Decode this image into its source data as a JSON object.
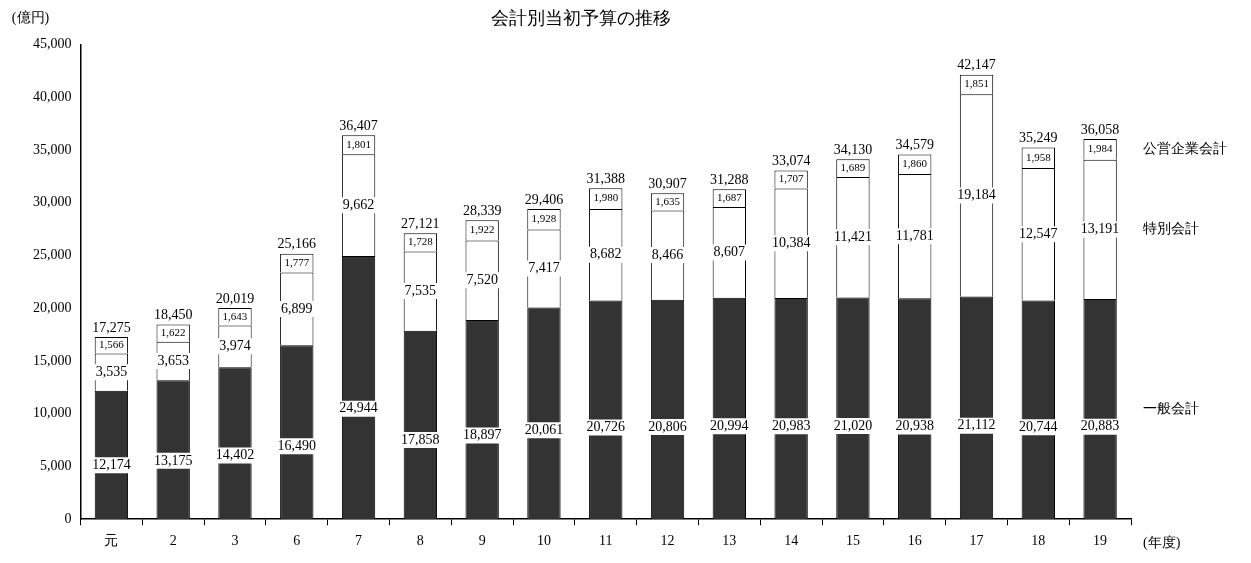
{
  "chart_data": {
    "type": "bar",
    "stacked": true,
    "title": "会計別当初予算の推移",
    "ylabel": "(億円)",
    "xlabel": "(年度)",
    "categories": [
      "元",
      "2",
      "3",
      "6",
      "7",
      "8",
      "9",
      "10",
      "11",
      "12",
      "13",
      "14",
      "15",
      "16",
      "17",
      "18",
      "19"
    ],
    "ylim": [
      0,
      45000
    ],
    "yticks": [
      0,
      {
        "value": 5000,
        "label": "5,000"
      },
      {
        "value": 10000,
        "label": "10,000"
      },
      {
        "value": 15000,
        "label": "15,000"
      },
      {
        "value": 20000,
        "label": "20,000"
      },
      {
        "value": 25000,
        "label": "25,000"
      },
      {
        "value": 30000,
        "label": "30,000"
      },
      {
        "value": 35000,
        "label": "35,000"
      },
      {
        "value": 40000,
        "label": "40,000"
      },
      {
        "value": 45000,
        "label": "45,000"
      }
    ],
    "legend": "right",
    "series": [
      {
        "name": "一般会計",
        "color": "#333333",
        "values": [
          12174,
          13175,
          14402,
          16490,
          24944,
          17858,
          18897,
          20061,
          20726,
          20806,
          20994,
          20983,
          21020,
          20938,
          21112,
          20744,
          20883
        ],
        "value_labels": [
          "12,174",
          "13,175",
          "14,402",
          "16,490",
          "24,944",
          "17,858",
          "18,897",
          "20,061",
          "20,726",
          "20,806",
          "20,994",
          "20,983",
          "21,020",
          "20,938",
          "21,112",
          "20,744",
          "20,883"
        ]
      },
      {
        "name": "特別会計",
        "color": "#ffffff",
        "values": [
          3535,
          3653,
          3974,
          6899,
          9662,
          7535,
          7520,
          7417,
          8682,
          8466,
          8607,
          10384,
          11421,
          11781,
          19184,
          12547,
          13191
        ],
        "value_labels": [
          "3,535",
          "3,653",
          "3,974",
          "6,899",
          "9,662",
          "7,535",
          "7,520",
          "7,417",
          "8,682",
          "8,466",
          "8,607",
          "10,384",
          "11,421",
          "11,781",
          "19,184",
          "12,547",
          "13,191"
        ]
      },
      {
        "name": "公営企業会計",
        "color": "#ffffff",
        "values": [
          1566,
          1622,
          1643,
          1777,
          1801,
          1728,
          1922,
          1928,
          1980,
          1635,
          1687,
          1707,
          1689,
          1860,
          1851,
          1958,
          1984
        ],
        "value_labels": [
          "1,566",
          "1,622",
          "1,643",
          "1,777",
          "1,801",
          "1,728",
          "1,922",
          "1,928",
          "1,980",
          "1,635",
          "1,687",
          "1,707",
          "1,689",
          "1,860",
          "1,851",
          "1,958",
          "1,984"
        ]
      }
    ],
    "totals": [
      "17,275",
      "18,450",
      "20,019",
      "25,166",
      "36,407",
      "27,121",
      "28,339",
      "29,406",
      "31,388",
      "30,907",
      "31,288",
      "33,074",
      "34,130",
      "34,579",
      "42,147",
      "35,249",
      "36,058"
    ]
  }
}
